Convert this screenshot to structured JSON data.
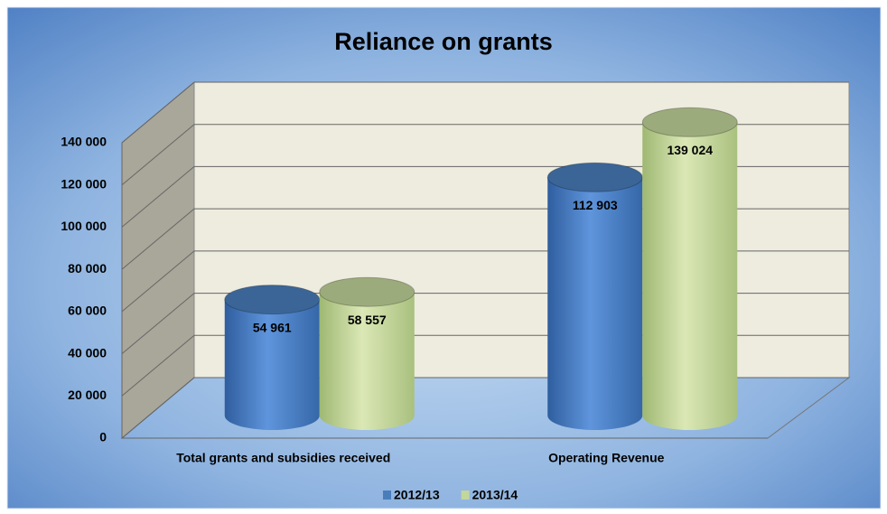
{
  "chart_data": {
    "type": "bar3d",
    "title": "Reliance on grants",
    "categories": [
      "Total grants and subsidies received",
      "Operating Revenue"
    ],
    "series": [
      {
        "name": "2012/13",
        "color": "#4a7ebb",
        "values": [
          54961,
          112903
        ],
        "value_labels": [
          "54 961",
          "112 903"
        ]
      },
      {
        "name": "2013/14",
        "color": "#c3d69b",
        "values": [
          58557,
          139024
        ],
        "value_labels": [
          "58 557",
          "139 024"
        ]
      }
    ],
    "ylim": [
      0,
      140000
    ],
    "yticks": [
      0,
      {
        "value": 20000,
        "label": "20 000"
      },
      {
        "value": 40000,
        "label": "40 000"
      },
      {
        "value": 60000,
        "label": "60 000"
      },
      {
        "value": 80000,
        "label": "80 000"
      },
      {
        "value": 100000,
        "label": "100 000"
      },
      {
        "value": 120000,
        "label": "120 000"
      },
      {
        "value": 140000,
        "label": "140 000"
      }
    ],
    "grid": true,
    "legend": "bottom"
  }
}
